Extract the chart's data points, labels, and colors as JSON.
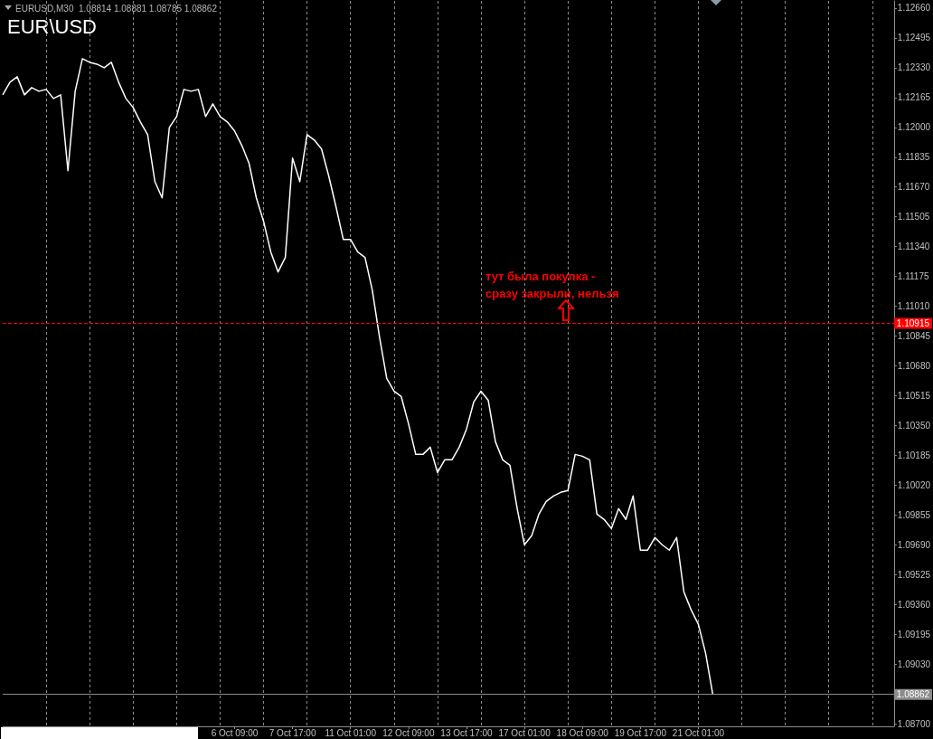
{
  "chart_data": {
    "type": "line",
    "title": "EUR\\USD",
    "annotations": [
      "EURUSD,M30  1.08814 1.08881 1.08785 1.08862",
      "тут была покупка -\nсразу закрыли, нельзя"
    ],
    "categories": [
      null,
      null,
      null,
      null,
      null,
      null,
      null,
      null,
      null,
      null,
      null,
      null,
      null,
      null,
      null,
      null,
      null,
      null,
      null,
      null,
      null,
      null,
      null,
      null,
      null,
      null,
      null,
      null,
      null,
      null,
      null,
      null,
      "6 Oct 09:00",
      null,
      null,
      null,
      null,
      null,
      null,
      null,
      "7 Oct 17:00",
      null,
      null,
      null,
      null,
      null,
      null,
      null,
      "11 Oct 01:00",
      null,
      null,
      null,
      null,
      null,
      null,
      null,
      "12 Oct 09:00",
      null,
      null,
      null,
      null,
      null,
      null,
      null,
      "13 Oct 17:00",
      null,
      null,
      null,
      null,
      null,
      null,
      null,
      "17 Oct 01:00",
      null,
      null,
      null,
      null,
      null,
      null,
      null,
      "18 Oct 09:00",
      null,
      null,
      null,
      null,
      null,
      null,
      null,
      "19 Oct 17:00",
      null,
      null,
      null,
      null,
      null,
      null,
      null,
      "21 Oct 01:00",
      null,
      null,
      null,
      null,
      null,
      null,
      null,
      null,
      null,
      null,
      null,
      null,
      null,
      null,
      null,
      null,
      null,
      null,
      null,
      null,
      null,
      null,
      null,
      null,
      null,
      null,
      null
    ],
    "series": [
      {
        "color": "#ffffff",
        "values": [
          1.1218,
          1.1225,
          1.1228,
          1.1218,
          1.1222,
          1.122,
          1.1221,
          1.1216,
          1.1218,
          1.1176,
          1.122,
          1.1238,
          1.1236,
          1.1235,
          1.1233,
          1.1236,
          1.1225,
          1.1216,
          1.1211,
          1.1203,
          1.1196,
          1.117,
          1.1161,
          1.12,
          1.1206,
          1.1221,
          1.122,
          1.1221,
          1.1206,
          1.1213,
          1.1206,
          1.1203,
          1.1198,
          1.119,
          1.118,
          1.1161,
          1.1148,
          1.1131,
          1.112,
          1.1128,
          1.1183,
          1.117,
          1.1196,
          1.1193,
          1.1188,
          1.1173,
          1.1156,
          1.1138,
          1.1138,
          1.1131,
          1.1128,
          1.111,
          1.1084,
          1.1061,
          1.1054,
          1.1051,
          1.1036,
          1.1019,
          1.1019,
          1.1023,
          1.1009,
          1.1016,
          1.1016,
          1.1023,
          1.1033,
          1.1048,
          1.1054,
          1.1049,
          1.1026,
          1.1016,
          1.1013,
          1.0989,
          1.0969,
          1.0974,
          1.0986,
          1.0993,
          1.0996,
          1.0998,
          1.0999,
          1.1019,
          1.1018,
          1.1016,
          1.0986,
          1.0983,
          1.0978,
          1.0989,
          1.0983,
          1.0996,
          1.0966,
          1.0966,
          1.0973,
          1.0969,
          1.0966,
          1.0973,
          1.0943,
          1.0933,
          1.0925,
          1.0909,
          1.0886,
          null,
          null,
          null,
          null,
          null,
          null,
          null,
          null,
          null,
          null,
          null,
          null,
          null,
          null,
          null,
          null,
          null,
          null,
          null,
          null,
          null,
          null,
          null,
          null,
          null
        ]
      }
    ],
    "ylim": [
      1.08685,
      1.127
    ],
    "yticks": [
      {
        "value": 1.1266,
        "label": "1.12660"
      },
      {
        "value": 1.12495,
        "label": "1.12495"
      },
      {
        "value": 1.1233,
        "label": "1.12330"
      },
      {
        "value": 1.12165,
        "label": "1.12165"
      },
      {
        "value": 1.12,
        "label": "1.12000"
      },
      {
        "value": 1.11835,
        "label": "1.11835"
      },
      {
        "value": 1.1167,
        "label": "1.11670"
      },
      {
        "value": 1.11505,
        "label": "1.11505"
      },
      {
        "value": 1.1134,
        "label": "1.11340"
      },
      {
        "value": 1.11175,
        "label": "1.11175"
      },
      {
        "value": 1.1101,
        "label": "1.11010"
      },
      {
        "value": 1.10845,
        "label": "1.10845"
      },
      {
        "value": 1.1068,
        "label": "1.10680"
      },
      {
        "value": 1.10515,
        "label": "1.10515"
      },
      {
        "value": 1.1035,
        "label": "1.10350"
      },
      {
        "value": 1.10185,
        "label": "1.10185"
      },
      {
        "value": 1.1002,
        "label": "1.10020"
      },
      {
        "value": 1.09855,
        "label": "1.09855"
      },
      {
        "value": 1.0969,
        "label": "1.09690"
      },
      {
        "value": 1.09525,
        "label": "1.09525"
      },
      {
        "value": 1.0936,
        "label": "1.09360"
      },
      {
        "value": 1.09195,
        "label": "1.09195"
      },
      {
        "value": 1.0903,
        "label": "1.09030"
      },
      {
        "value": 1.087,
        "label": "1.08700"
      }
    ],
    "ref_lines": [
      {
        "axis": "y",
        "value": 1.10915,
        "label": "1.10915",
        "color": "#ff0000",
        "line_style": "dashed"
      },
      {
        "axis": "y",
        "value": 1.08862,
        "label": "1.08862",
        "color": "#8c8c8c",
        "line_style": "solid"
      }
    ],
    "grid": "x",
    "marker": "none",
    "line_style": "solid"
  }
}
